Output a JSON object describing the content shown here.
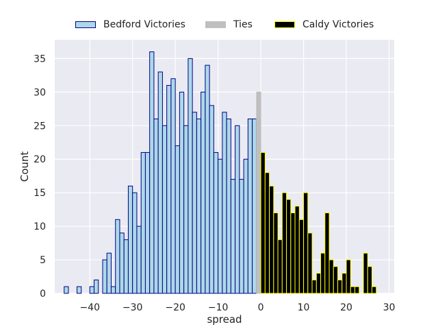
{
  "chart_data": {
    "type": "bar",
    "subtype": "histogram",
    "xlabel": "spread",
    "ylabel": "Count",
    "xlim": [
      -48.2,
      31.2
    ],
    "ylim": [
      0,
      37.8
    ],
    "bin_width": 1,
    "grid": true,
    "legend_position": "top-center",
    "x_ticks": [
      -40,
      -30,
      -20,
      -10,
      0,
      10,
      20,
      30
    ],
    "x_tick_labels": [
      "−40",
      "−30",
      "−20",
      "−10",
      "0",
      "10",
      "20",
      "30"
    ],
    "y_ticks": [
      0,
      5,
      10,
      15,
      20,
      25,
      30,
      35
    ],
    "y_tick_labels": [
      "0",
      "5",
      "10",
      "15",
      "20",
      "25",
      "30",
      "35"
    ],
    "series": [
      {
        "name": "Bedford Victories",
        "fill": "#add8e6",
        "edge": "#00008b",
        "bin_starts": [
          -46,
          -43,
          -40,
          -39,
          -37,
          -36,
          -35,
          -34,
          -33,
          -32,
          -31,
          -30,
          -29,
          -28,
          -27,
          -26,
          -25,
          -24,
          -23,
          -22,
          -21,
          -20,
          -19,
          -18,
          -17,
          -16,
          -15,
          -14,
          -13,
          -12,
          -11,
          -10,
          -9,
          -8,
          -7,
          -6,
          -5,
          -4,
          -3,
          -2
        ],
        "values": [
          1,
          1,
          1,
          2,
          5,
          6,
          1,
          11,
          9,
          8,
          16,
          15,
          10,
          21,
          21,
          36,
          26,
          33,
          25,
          31,
          32,
          22,
          30,
          25,
          35,
          27,
          26,
          30,
          34,
          28,
          21,
          20,
          27,
          26,
          17,
          25,
          17,
          20,
          26,
          26
        ]
      },
      {
        "name": "Ties",
        "fill": "#bfbfbf",
        "edge": "#bfbfbf",
        "bin_starts": [
          -1
        ],
        "values": [
          30
        ]
      },
      {
        "name": "Caldy Victories",
        "fill": "#000000",
        "edge": "#ffff00",
        "bin_starts": [
          0,
          1,
          2,
          3,
          4,
          5,
          6,
          7,
          8,
          9,
          10,
          11,
          12,
          13,
          14,
          15,
          16,
          17,
          18,
          19,
          20,
          21,
          22,
          23,
          24,
          25,
          26
        ],
        "values": [
          21,
          18,
          16,
          12,
          8,
          15,
          14,
          12,
          13,
          11,
          15,
          9,
          2,
          3,
          6,
          12,
          5,
          4,
          2,
          3,
          5,
          1,
          1,
          0,
          6,
          4,
          1
        ]
      }
    ]
  }
}
